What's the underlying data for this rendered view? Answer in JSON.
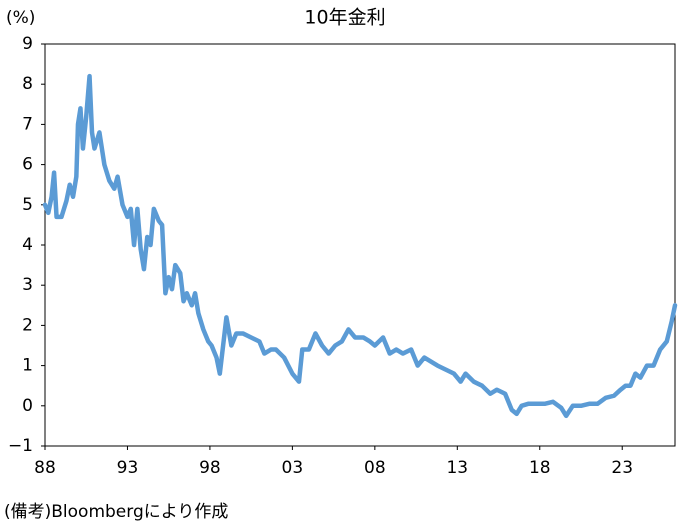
{
  "chart_data": {
    "type": "line",
    "title": "10年金利",
    "y_label": "(%)",
    "note": "(備考)Bloombergにより作成",
    "color": "#5b9bd5",
    "x": [
      1988.0,
      1988.2,
      1988.4,
      1988.55,
      1988.7,
      1989.0,
      1989.3,
      1989.5,
      1989.7,
      1989.9,
      1990.0,
      1990.15,
      1990.3,
      1990.5,
      1990.7,
      1990.85,
      1991.0,
      1991.3,
      1991.6,
      1991.9,
      1992.2,
      1992.4,
      1992.7,
      1993.0,
      1993.2,
      1993.4,
      1993.6,
      1993.8,
      1994.0,
      1994.2,
      1994.4,
      1994.6,
      1994.9,
      1995.1,
      1995.3,
      1995.5,
      1995.7,
      1995.9,
      1996.2,
      1996.4,
      1996.6,
      1996.9,
      1997.1,
      1997.3,
      1997.6,
      1997.9,
      1998.1,
      1998.4,
      1998.6,
      1998.8,
      1999.0,
      1999.3,
      1999.6,
      2000.0,
      2000.5,
      2001.0,
      2001.3,
      2001.7,
      2002.0,
      2002.5,
      2003.0,
      2003.4,
      2003.6,
      2004.0,
      2004.4,
      2004.8,
      2005.2,
      2005.6,
      2006.0,
      2006.4,
      2006.8,
      2007.3,
      2007.7,
      2008.0,
      2008.5,
      2008.9,
      2009.3,
      2009.7,
      2010.2,
      2010.6,
      2011.0,
      2011.4,
      2011.8,
      2012.3,
      2012.8,
      2013.2,
      2013.5,
      2014.0,
      2014.5,
      2015.0,
      2015.4,
      2015.9,
      2016.3,
      2016.6,
      2016.9,
      2017.3,
      2017.8,
      2018.3,
      2018.8,
      2019.3,
      2019.6,
      2020.0,
      2020.5,
      2021.0,
      2021.5,
      2022.0,
      2022.5,
      2022.9,
      2023.2,
      2023.5,
      2023.8,
      2024.1,
      2024.5,
      2024.9,
      2025.3,
      2025.7,
      2026.0,
      2026.2
    ],
    "values": [
      5.0,
      4.8,
      5.2,
      5.8,
      4.7,
      4.7,
      5.1,
      5.5,
      5.2,
      5.7,
      7.0,
      7.4,
      6.4,
      7.2,
      8.2,
      6.8,
      6.4,
      6.8,
      6.0,
      5.6,
      5.4,
      5.7,
      5.0,
      4.7,
      4.9,
      4.0,
      4.9,
      3.9,
      3.4,
      4.2,
      4.0,
      4.9,
      4.6,
      4.5,
      2.8,
      3.2,
      2.9,
      3.5,
      3.3,
      2.6,
      2.8,
      2.5,
      2.8,
      2.3,
      1.9,
      1.6,
      1.5,
      1.2,
      0.8,
      1.5,
      2.2,
      1.5,
      1.8,
      1.8,
      1.7,
      1.6,
      1.3,
      1.4,
      1.4,
      1.2,
      0.8,
      0.6,
      1.4,
      1.4,
      1.8,
      1.5,
      1.3,
      1.5,
      1.6,
      1.9,
      1.7,
      1.7,
      1.6,
      1.5,
      1.7,
      1.3,
      1.4,
      1.3,
      1.4,
      1.0,
      1.2,
      1.1,
      1.0,
      0.9,
      0.8,
      0.6,
      0.8,
      0.6,
      0.5,
      0.3,
      0.4,
      0.3,
      -0.1,
      -0.2,
      0.0,
      0.05,
      0.05,
      0.05,
      0.1,
      -0.05,
      -0.25,
      0.0,
      0.0,
      0.05,
      0.05,
      0.2,
      0.25,
      0.4,
      0.5,
      0.5,
      0.8,
      0.7,
      1.0,
      1.0,
      1.4,
      1.6,
      2.1,
      2.5
    ],
    "xlim": [
      1988,
      2026.2
    ],
    "xticks": [
      {
        "value": 1988,
        "label": "88"
      },
      {
        "value": 1993,
        "label": "93"
      },
      {
        "value": 1998,
        "label": "98"
      },
      {
        "value": 2003,
        "label": "03"
      },
      {
        "value": 2008,
        "label": "08"
      },
      {
        "value": 2013,
        "label": "13"
      },
      {
        "value": 2018,
        "label": "18"
      },
      {
        "value": 2023,
        "label": "23"
      }
    ],
    "ylim": [
      -1,
      9
    ],
    "yticks": [
      {
        "value": -1,
        "label": "−1"
      },
      0,
      1,
      2,
      3,
      4,
      5,
      6,
      7,
      8,
      9
    ]
  }
}
